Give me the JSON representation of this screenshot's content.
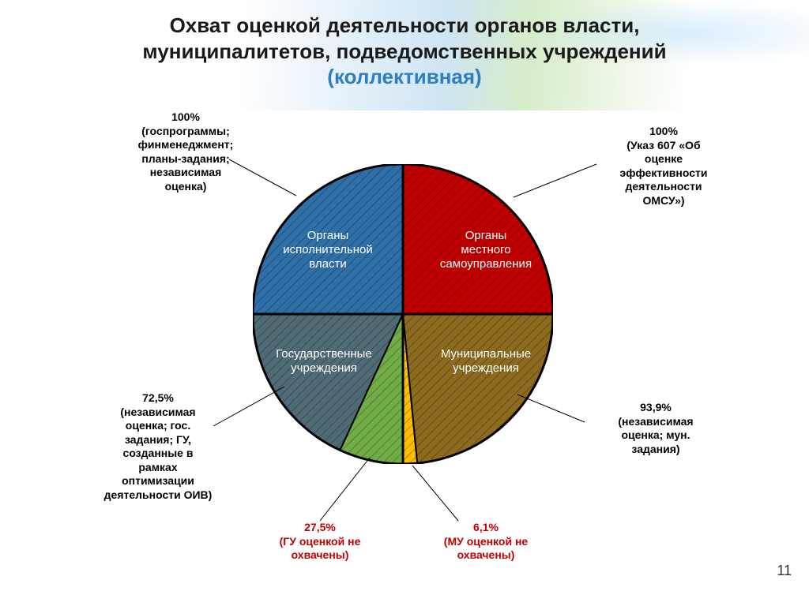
{
  "title_line1": "Охват оценкой деятельности органов власти,",
  "title_line2": "муниципалитетов, подведомственных учреждений",
  "title_line3": "(коллективная)",
  "page_number": "11",
  "pie": {
    "type": "pie",
    "radius": 190,
    "stroke": "#000000",
    "stroke_width": 3,
    "hatch_stroke": "#000000",
    "hatch_opacity": 0.45,
    "background": "#ffffff",
    "slices": [
      {
        "key": "q1_oms",
        "label_line1": "Органы",
        "label_line2": "местного",
        "label_line3": "самоуправления",
        "start_deg": 0,
        "end_deg": 90,
        "fill": "#c00000"
      },
      {
        "key": "q2_oiv",
        "label_line1": "Органы",
        "label_line2": "исполнительной",
        "label_line3": "власти",
        "start_deg": 90,
        "end_deg": 180,
        "fill": "#2f6fa8"
      },
      {
        "key": "q3_gu_c",
        "label_line1": "Государственные",
        "label_line2": "учреждения",
        "label_line3": "",
        "start_deg": 180,
        "end_deg": 245.25,
        "fill": "#4f6b76"
      },
      {
        "key": "q3_gu_u",
        "start_deg": 245.25,
        "end_deg": 270,
        "fill": "#70ad47"
      },
      {
        "key": "q4_mu_u",
        "start_deg": 270,
        "end_deg": 275.5,
        "fill": "#ffbd00"
      },
      {
        "key": "q4_mu_c",
        "label_line1": "Муниципальные",
        "label_line2": "учреждения",
        "label_line3": "",
        "start_deg": 275.5,
        "end_deg": 360,
        "fill": "#8c6a1f"
      }
    ],
    "quadrant_shares": {
      "q3_covered_pct": 72.5,
      "q3_uncovered_pct": 27.5,
      "q4_covered_pct": 93.9,
      "q4_uncovered_pct": 6.1
    }
  },
  "callouts": {
    "top_left": {
      "color": "black",
      "l1": "100%",
      "l2": "(госпрограммы;",
      "l3": "финменеджмент;",
      "l4": "планы-задания;",
      "l5": "независимая",
      "l6": "оценка)"
    },
    "top_right": {
      "color": "black",
      "l1": "100%",
      "l2": "(Указ 607 «Об",
      "l3": "оценке",
      "l4": "эффективности",
      "l5": "деятельности",
      "l6": "ОМСУ»)"
    },
    "bottom_right": {
      "color": "black",
      "l1": "93,9%",
      "l2": "(независимая",
      "l3": "оценка; мун.",
      "l4": "задания)"
    },
    "bottom_left": {
      "color": "black",
      "l1": "72,5%",
      "l2": "(независимая",
      "l3": "оценка; гос.",
      "l4": "задания; ГУ,",
      "l5": "созданные в",
      "l6": "рамках",
      "l7": "оптимизации",
      "l8": "деятельности ОИВ)"
    },
    "gu_uncovered": {
      "color": "red",
      "l1": "27,5%",
      "l2": "(ГУ оценкой не",
      "l3": "охвачены)"
    },
    "mu_uncovered": {
      "color": "red",
      "l1": "6,1%",
      "l2": "(МУ оценкой не",
      "l3": "охвачены)"
    }
  },
  "leader_color": "#000000"
}
